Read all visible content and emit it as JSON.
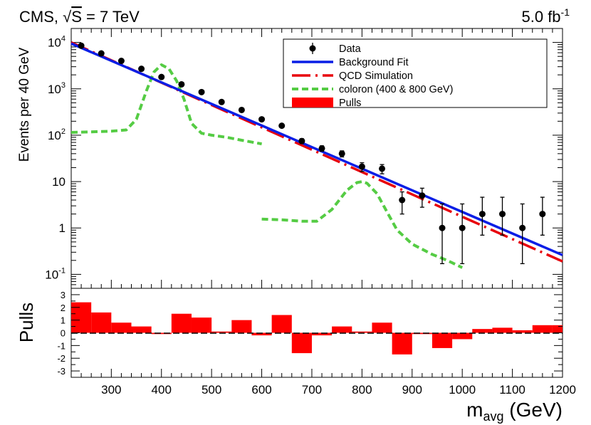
{
  "chart_data": [
    {
      "type": "scatter",
      "title": "CMS, √S = 7 TeV",
      "title_prefix": "CMS, ",
      "title_sqrt": "S",
      "title_suffix": " = 7 TeV",
      "luminosity": "5.0 fb",
      "luminosity_exp": "-1",
      "xlabel": "m_avg (GeV)",
      "ylabel": "Events per 40 GeV",
      "xlim": [
        220,
        1200
      ],
      "ylim": [
        0.05,
        20000
      ],
      "yscale": "log",
      "x_ticks": [
        300,
        400,
        500,
        600,
        700,
        800,
        900,
        1000,
        1100,
        1200
      ],
      "y_tick_labels": [
        {
          "value": 0.1,
          "base": "10",
          "exp": "-1"
        },
        {
          "value": 1,
          "label": "1"
        },
        {
          "value": 10,
          "label": "10"
        },
        {
          "value": 100,
          "base": "10",
          "exp": "2"
        },
        {
          "value": 1000,
          "base": "10",
          "exp": "3"
        },
        {
          "value": 10000,
          "base": "10",
          "exp": "4"
        }
      ],
      "legend": [
        {
          "label": "Data",
          "style": "marker"
        },
        {
          "label": "Background Fit",
          "style": "solid-blue"
        },
        {
          "label": "QCD Simulation",
          "style": "dashdot-red"
        },
        {
          "label": "coloron (400 & 800 GeV)",
          "style": "dotted-green"
        },
        {
          "label": "Pulls",
          "style": "filled-red"
        }
      ],
      "colors": {
        "data": "#000000",
        "fit": "#0a1ee6",
        "qcd": "#e8000b",
        "coloron": "#55cc44",
        "pulls": "#ff0000"
      },
      "data": {
        "x": [
          240,
          280,
          320,
          360,
          400,
          440,
          480,
          520,
          560,
          600,
          640,
          680,
          720,
          760,
          800,
          840,
          880,
          920,
          960,
          1000,
          1040,
          1080,
          1120,
          1160
        ],
        "y": [
          8500,
          5800,
          4000,
          2700,
          1800,
          1250,
          850,
          520,
          350,
          220,
          160,
          75,
          52,
          40,
          21,
          19,
          4,
          5,
          1,
          1,
          2,
          2,
          1,
          2
        ],
        "err_low": [
          90,
          76,
          63,
          52,
          42,
          35,
          29,
          23,
          19,
          15,
          13,
          9,
          7,
          6,
          4.5,
          4.3,
          2.0,
          2.2,
          0.83,
          0.83,
          1.3,
          1.3,
          0.83,
          1.3
        ],
        "err_high": [
          90,
          76,
          63,
          52,
          42,
          35,
          29,
          23,
          19,
          15,
          13,
          9,
          7,
          6,
          4.5,
          4.3,
          2.0,
          2.2,
          2.3,
          2.3,
          2.6,
          2.6,
          2.3,
          2.6
        ]
      },
      "background_fit": {
        "x": [
          220,
          1200
        ],
        "y": [
          9500,
          0.26
        ]
      },
      "qcd_simulation": {
        "x": [
          220,
          1200
        ],
        "y": [
          10000,
          0.19
        ]
      },
      "coloron_400": {
        "x": [
          220,
          260,
          300,
          330,
          350,
          370,
          385,
          400,
          415,
          430,
          445,
          460,
          480,
          500,
          530,
          560,
          600
        ],
        "y": [
          115,
          118,
          122,
          130,
          220,
          900,
          2300,
          3300,
          2700,
          1500,
          600,
          180,
          110,
          100,
          90,
          78,
          65
        ]
      },
      "coloron_800": {
        "x": [
          600,
          640,
          680,
          710,
          740,
          770,
          790,
          800,
          810,
          830,
          850,
          870,
          900,
          940,
          970,
          1000
        ],
        "y": [
          1.55,
          1.5,
          1.4,
          1.4,
          2.5,
          6.5,
          9.5,
          10,
          9.2,
          5.5,
          2.2,
          0.9,
          0.45,
          0.27,
          0.2,
          0.14
        ]
      }
    },
    {
      "type": "bar",
      "ylabel": "Pulls",
      "ylim": [
        -3.5,
        3.5
      ],
      "y_ticks": [
        -3,
        -2,
        -1,
        0,
        1,
        2,
        3
      ],
      "bin_edges": [
        220,
        260,
        300,
        340,
        380,
        420,
        460,
        500,
        540,
        580,
        620,
        660,
        700,
        740,
        780,
        820,
        860,
        900,
        940,
        980,
        1020,
        1060,
        1100,
        1140,
        1180,
        1200
      ],
      "values": [
        2.4,
        1.6,
        0.8,
        0.5,
        -0.1,
        1.5,
        1.2,
        0.1,
        1.0,
        -0.2,
        1.4,
        -1.6,
        -0.2,
        0.5,
        0.1,
        0.8,
        -1.7,
        -0.1,
        -1.2,
        -0.5,
        0.3,
        0.4,
        0.2,
        0.6,
        0.6
      ]
    }
  ]
}
